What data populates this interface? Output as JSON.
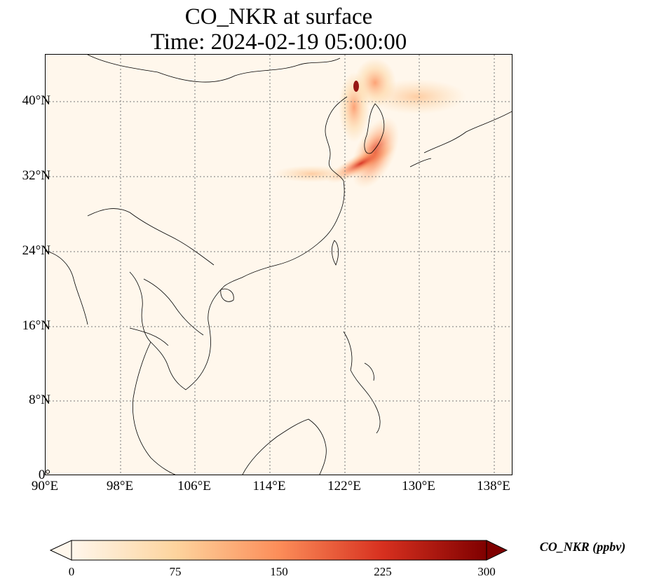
{
  "title": {
    "line1": "CO_NKR at surface",
    "line2": "Time: 2024-02-19 05:00:00"
  },
  "map": {
    "lon_range": [
      90,
      140
    ],
    "lat_range": [
      0,
      45
    ],
    "gridlines": true,
    "lat_ticks": [
      "40°N",
      "32°N",
      "24°N",
      "16°N",
      "8°N",
      "0°"
    ],
    "lon_ticks": [
      "90°E",
      "98°E",
      "106°E",
      "114°E",
      "122°E",
      "130°E",
      "138°E"
    ],
    "background_color": "#fff7ec"
  },
  "colorbar": {
    "label": "CO_NKR (ppbv)",
    "min": 0,
    "max": 300,
    "ticks": [
      "0",
      "75",
      "150",
      "225",
      "300"
    ],
    "extend": "both",
    "colormap": [
      "#fff7ec",
      "#fdd49e",
      "#fc8d59",
      "#d7301f",
      "#7f0000"
    ]
  }
}
